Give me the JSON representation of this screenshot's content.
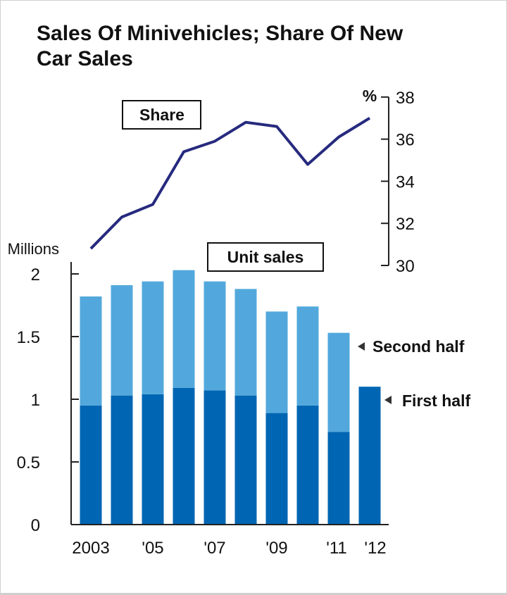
{
  "chart_data": {
    "type": "bar",
    "title": "Sales Of Minivehicles; Share Of New Car Sales",
    "categories": [
      "2003",
      "2004",
      "2005",
      "2006",
      "2007",
      "2008",
      "2009",
      "2010",
      "2011",
      "2012"
    ],
    "xtick_labels": [
      "2003",
      "",
      "'05",
      "",
      "'07",
      "",
      "'09",
      "",
      "'11",
      "'12"
    ],
    "bar_axis": {
      "unit": "Millions",
      "ylim": [
        0,
        2
      ],
      "ticks": [
        "0",
        "0.5",
        "1",
        "1.5",
        "2"
      ],
      "tick_values": [
        0,
        0.5,
        1,
        1.5,
        2
      ]
    },
    "series": [
      {
        "name": "First half",
        "type": "bar",
        "color": "#0066b3",
        "values": [
          0.95,
          1.03,
          1.04,
          1.09,
          1.07,
          1.03,
          0.89,
          0.95,
          0.74,
          1.1
        ]
      },
      {
        "name": "Second half",
        "type": "bar",
        "color": "#52a8dc",
        "values": [
          0.87,
          0.88,
          0.9,
          0.94,
          0.87,
          0.85,
          0.81,
          0.79,
          0.79,
          null
        ]
      },
      {
        "name": "Share",
        "type": "line",
        "color": "#262a7e",
        "values": [
          30.8,
          32.3,
          32.9,
          35.4,
          35.9,
          36.8,
          36.6,
          34.8,
          36.1,
          37.0
        ]
      }
    ],
    "share_axis": {
      "unit": "%",
      "ylim": [
        30,
        38
      ],
      "ticks": [
        "30",
        "32",
        "34",
        "36",
        "38"
      ],
      "tick_values": [
        30,
        32,
        34,
        36,
        38
      ]
    },
    "annotations": {
      "share_box": "Share",
      "unit_sales_box": "Unit sales"
    },
    "legend": {
      "second_half": "Second half",
      "first_half": "First half",
      "placement": "right"
    }
  }
}
